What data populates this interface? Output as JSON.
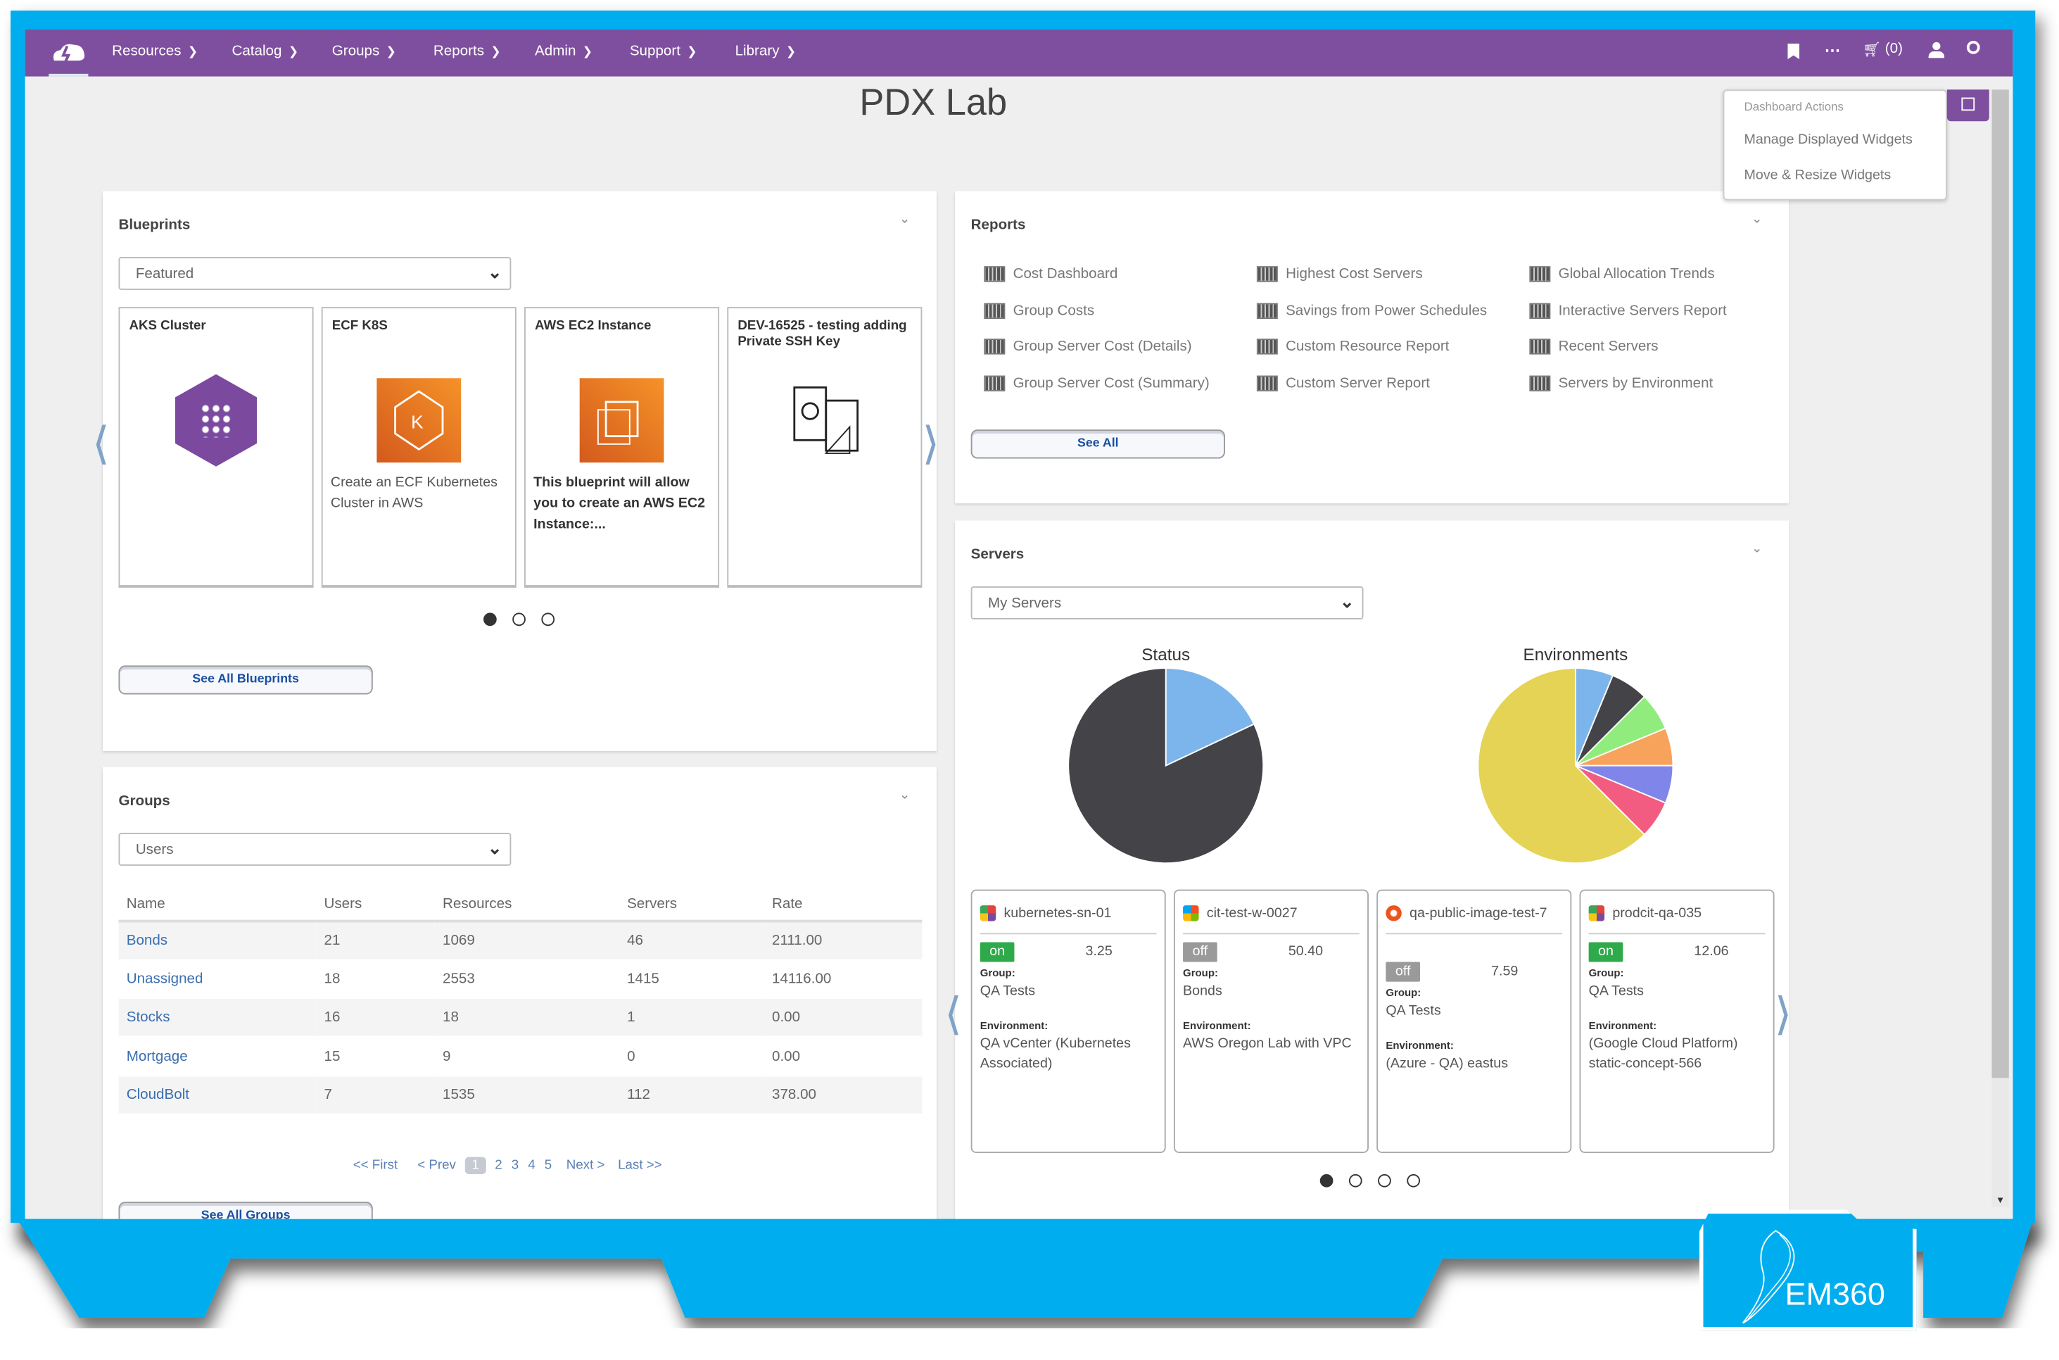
{
  "nav": {
    "items": [
      "Resources",
      "Catalog",
      "Groups",
      "Reports",
      "Admin",
      "Support",
      "Library"
    ],
    "cart_count": "(0)"
  },
  "page_title": "PDX Lab",
  "dashboard_actions": {
    "header": "Dashboard Actions",
    "items": [
      "Manage Displayed Widgets",
      "Move & Resize Widgets"
    ]
  },
  "blueprints": {
    "title": "Blueprints",
    "filter": "Featured",
    "cards": [
      {
        "title": "AKS Cluster",
        "desc": "",
        "icon": "aks-hexagon-icon"
      },
      {
        "title": "ECF K8S",
        "desc": "Create an ECF Kubernetes Cluster in AWS",
        "icon": "kubernetes-icon"
      },
      {
        "title": "AWS EC2 Instance",
        "desc": "This blueprint will allow you to create an AWS EC2 Instance:...",
        "icon": "ec2-chip-icon"
      },
      {
        "title": "DEV-16525 - testing adding Private SSH Key",
        "desc": "",
        "icon": "blueprint-document-icon"
      }
    ],
    "see_all": "See All Blueprints"
  },
  "groups": {
    "title": "Groups",
    "filter": "Users",
    "columns": [
      "Name",
      "Users",
      "Resources",
      "Servers",
      "Rate"
    ],
    "rows": [
      [
        "Bonds",
        "21",
        "1069",
        "46",
        "2111.00"
      ],
      [
        "Unassigned",
        "18",
        "2553",
        "1415",
        "14116.00"
      ],
      [
        "Stocks",
        "16",
        "18",
        "1",
        "0.00"
      ],
      [
        "Mortgage",
        "15",
        "9",
        "0",
        "0.00"
      ],
      [
        "CloudBolt",
        "7",
        "1535",
        "112",
        "378.00"
      ]
    ],
    "pager": {
      "first": "<< First",
      "prev": "< Prev",
      "pages": [
        "1",
        "2",
        "3",
        "4",
        "5"
      ],
      "current": "1",
      "next": "Next >",
      "last": "Last >>"
    },
    "see_all": "See All Groups"
  },
  "reports": {
    "title": "Reports",
    "columns": [
      [
        "Cost Dashboard",
        "Group Costs",
        "Group Server Cost (Details)",
        "Group Server Cost (Summary)"
      ],
      [
        "Highest Cost Servers",
        "Savings from Power Schedules",
        "Custom Resource Report",
        "Custom Server Report"
      ],
      [
        "Global Allocation Trends",
        "Interactive Servers Report",
        "Recent Servers",
        "Servers by Environment"
      ]
    ],
    "see_all": "See All"
  },
  "servers": {
    "title": "Servers",
    "filter": "My Servers",
    "group_label": "Group:",
    "env_label": "Environment:",
    "cards": [
      {
        "name": "kubernetes-sn-01",
        "status": "on",
        "cost": "3.25",
        "group": "QA Tests",
        "environment": "QA vCenter (Kubernetes Associated)",
        "os": "linux"
      },
      {
        "name": "cit-test-w-0027",
        "status": "off",
        "cost": "50.40",
        "group": "Bonds",
        "environment": "AWS Oregon Lab with VPC",
        "os": "windows"
      },
      {
        "name": "qa-public-image-test-7",
        "status": "off",
        "cost": "7.59",
        "group": "QA Tests",
        "environment": "(Azure - QA) eastus",
        "os": "ubuntu"
      },
      {
        "name": "prodcit-qa-035",
        "status": "on",
        "cost": "12.06",
        "group": "QA Tests",
        "environment": "(Google Cloud Platform) static-concept-566",
        "os": "linux"
      }
    ]
  },
  "colors": {
    "nav": "#7f4f9f",
    "frame": "#00aeef",
    "on": "#2eaa4a",
    "off": "#9a9a9a",
    "link": "#3a6fb0"
  },
  "chart_data": [
    {
      "type": "pie",
      "title": "Status",
      "slices": [
        {
          "value": 18,
          "color": "#7cb5ec"
        },
        {
          "value": 82,
          "color": "#434348"
        }
      ]
    },
    {
      "type": "pie",
      "title": "Environments",
      "slices": [
        {
          "value": 1,
          "color": "#7cb5ec"
        },
        {
          "value": 1,
          "color": "#434348"
        },
        {
          "value": 1,
          "color": "#90ed7d"
        },
        {
          "value": 1,
          "color": "#f7a35c"
        },
        {
          "value": 1,
          "color": "#8085e9"
        },
        {
          "value": 1,
          "color": "#f15c80"
        },
        {
          "value": 10,
          "color": "#e4d354"
        }
      ]
    }
  ],
  "logo_text": "EM360"
}
